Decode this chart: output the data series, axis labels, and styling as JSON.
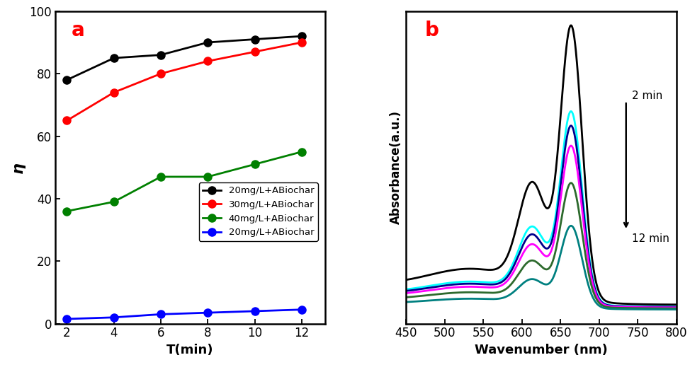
{
  "panel_a": {
    "x": [
      2,
      4,
      6,
      8,
      10,
      12
    ],
    "series": [
      {
        "label": "20mg/L+ABiochar",
        "color": "black",
        "y": [
          78,
          85,
          86,
          90,
          91,
          92
        ]
      },
      {
        "label": "30mg/L+ABiochar",
        "color": "red",
        "y": [
          65,
          74,
          80,
          84,
          87,
          90
        ]
      },
      {
        "label": "40mg/L+ABiochar",
        "color": "green",
        "y": [
          36,
          39,
          47,
          47,
          51,
          55
        ]
      },
      {
        "label": "20mg/L+ABiochar",
        "color": "blue",
        "y": [
          1.5,
          2.0,
          3.0,
          3.5,
          4.0,
          4.5
        ]
      }
    ],
    "xlabel": "T(min)",
    "ylabel": "η",
    "ylim": [
      0,
      100
    ],
    "xlim": [
      1.5,
      13
    ],
    "xticks": [
      2,
      4,
      6,
      8,
      10,
      12
    ],
    "yticks": [
      0,
      20,
      40,
      60,
      80,
      100
    ],
    "label": "a"
  },
  "panel_b": {
    "xlabel": "Wavenumber (nm)",
    "ylabel": "Absorbance(a.u.)",
    "xlim": [
      450,
      800
    ],
    "xticks": [
      450,
      500,
      550,
      600,
      650,
      700,
      750,
      800
    ],
    "label": "b",
    "annotation_start": "2 min",
    "annotation_end": "12 min",
    "curves": [
      {
        "color": "black",
        "peak": 1.0,
        "shoulder_ratio": 0.38,
        "time": 2
      },
      {
        "color": "cyan",
        "peak": 0.7,
        "shoulder_ratio": 0.35,
        "time": 4
      },
      {
        "color": "#00008B",
        "peak": 0.65,
        "shoulder_ratio": 0.34,
        "time": 6
      },
      {
        "color": "magenta",
        "peak": 0.58,
        "shoulder_ratio": 0.33,
        "time": 8
      },
      {
        "color": "#2d6a2d",
        "peak": 0.45,
        "shoulder_ratio": 0.32,
        "time": 10
      },
      {
        "color": "#008080",
        "peak": 0.3,
        "shoulder_ratio": 0.3,
        "time": 12
      }
    ]
  }
}
